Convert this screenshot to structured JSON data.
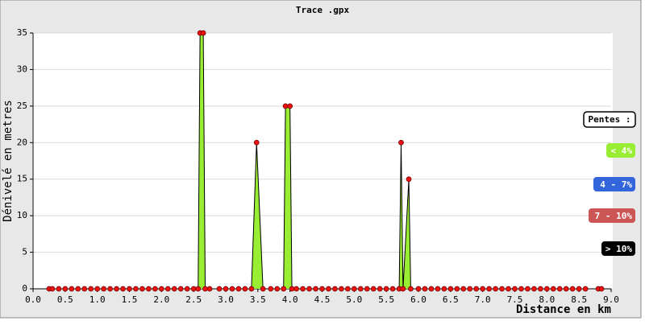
{
  "chart_data": {
    "type": "line",
    "title": "Trace .gpx",
    "x_label": "Distance en km",
    "y_label": "Dénivelé en metres",
    "x": [
      0.25,
      0.3,
      0.4,
      0.5,
      0.6,
      0.7,
      0.8,
      0.9,
      1.0,
      1.1,
      1.2,
      1.3,
      1.4,
      1.5,
      1.6,
      1.7,
      1.8,
      1.9,
      2.0,
      2.1,
      2.2,
      2.3,
      2.4,
      2.5,
      2.57,
      2.6,
      2.65,
      2.68,
      2.75,
      2.9,
      3.0,
      3.1,
      3.2,
      3.3,
      3.4,
      3.48,
      3.58,
      3.7,
      3.8,
      3.9,
      3.93,
      4.0,
      4.03,
      4.1,
      4.2,
      4.3,
      4.4,
      4.5,
      4.6,
      4.7,
      4.8,
      4.9,
      5.0,
      5.1,
      5.2,
      5.3,
      5.4,
      5.5,
      5.6,
      5.7,
      5.73,
      5.76,
      5.85,
      5.88,
      6.0,
      6.1,
      6.2,
      6.3,
      6.4,
      6.5,
      6.6,
      6.7,
      6.8,
      6.9,
      7.0,
      7.1,
      7.2,
      7.3,
      7.4,
      7.5,
      7.6,
      7.7,
      7.8,
      7.9,
      8.0,
      8.1,
      8.2,
      8.3,
      8.4,
      8.5,
      8.6,
      8.8,
      8.85
    ],
    "values": [
      0,
      0,
      0,
      0,
      0,
      0,
      0,
      0,
      0,
      0,
      0,
      0,
      0,
      0,
      0,
      0,
      0,
      0,
      0,
      0,
      0,
      0,
      0,
      0,
      0,
      35,
      35,
      0,
      0,
      0,
      0,
      0,
      0,
      0,
      0,
      20,
      0,
      0,
      0,
      0,
      25,
      25,
      0,
      0,
      0,
      0,
      0,
      0,
      0,
      0,
      0,
      0,
      0,
      0,
      0,
      0,
      0,
      0,
      0,
      0,
      20,
      0,
      15,
      0,
      0,
      0,
      0,
      0,
      0,
      0,
      0,
      0,
      0,
      0,
      0,
      0,
      0,
      0,
      0,
      0,
      0,
      0,
      0,
      0,
      0,
      0,
      0,
      0,
      0,
      0,
      0,
      0,
      0
    ],
    "line_color": "#000000",
    "fill_color": "#99ee33",
    "marker_color": "#ee1111",
    "xlim": [
      0,
      9
    ],
    "ylim": [
      0,
      35
    ],
    "xticks": [
      {
        "value": 0,
        "label": "0.0"
      },
      {
        "value": 0.5,
        "label": "0.5"
      },
      {
        "value": 1,
        "label": "1.0"
      },
      {
        "value": 1.5,
        "label": "1.5"
      },
      {
        "value": 2,
        "label": "2.0"
      },
      {
        "value": 2.5,
        "label": "2.5"
      },
      {
        "value": 3,
        "label": "3.0"
      },
      {
        "value": 3.5,
        "label": "3.5"
      },
      {
        "value": 4,
        "label": "4.0"
      },
      {
        "value": 4.5,
        "label": "4.5"
      },
      {
        "value": 5,
        "label": "5.0"
      },
      {
        "value": 5.5,
        "label": "5.5"
      },
      {
        "value": 6,
        "label": "6.0"
      },
      {
        "value": 6.5,
        "label": "6.5"
      },
      {
        "value": 7,
        "label": "7.0"
      },
      {
        "value": 7.5,
        "label": "7.5"
      },
      {
        "value": 8,
        "label": "8.0"
      },
      {
        "value": 8.5,
        "label": "8.5"
      },
      {
        "value": 9,
        "label": "9.0"
      }
    ],
    "yticks": [
      0,
      5,
      10,
      15,
      20,
      25,
      30,
      35
    ],
    "grid": true,
    "legend": {
      "title": "Pentes :",
      "items": [
        {
          "label": "< 4%",
          "color": "#99ee33"
        },
        {
          "label": "4 - 7%",
          "color": "#3366dd"
        },
        {
          "label": "7 - 10%",
          "color": "#cc5555"
        },
        {
          "label": "> 10%",
          "color": "#000000"
        }
      ]
    }
  }
}
